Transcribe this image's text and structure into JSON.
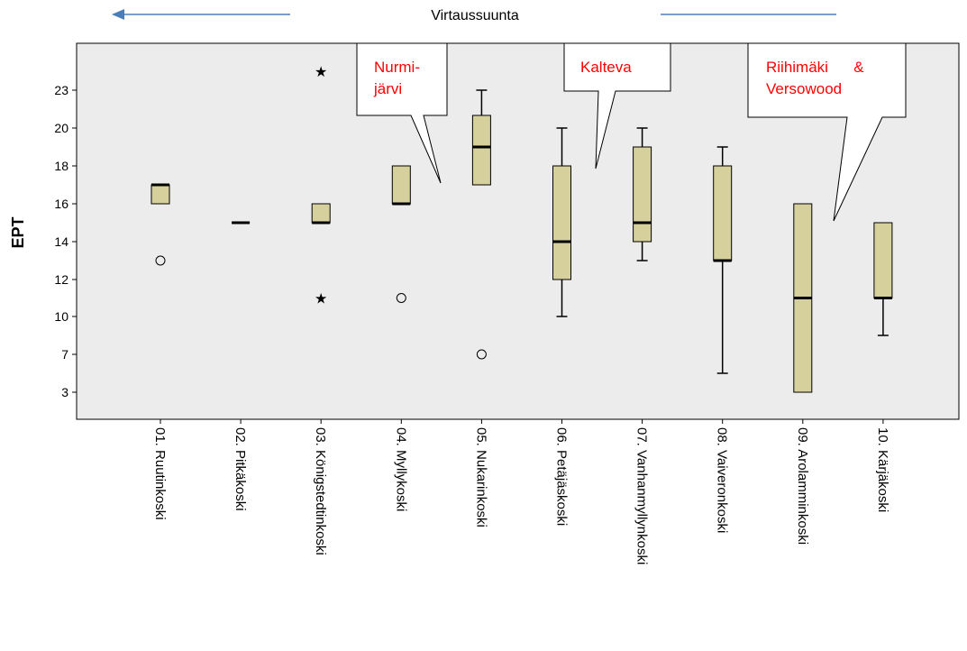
{
  "chart_data": {
    "type": "boxplot",
    "title": "Virtaussuunta",
    "ylabel": "EPT",
    "yticks": [
      3,
      7,
      10,
      12,
      14,
      16,
      18,
      20,
      23
    ],
    "categories": [
      "01. Ruutinkoski",
      "02. Pitkäkoski",
      "03. Königstedtinkoski",
      "04. Myllykoski",
      "05. Nukarinkoski",
      "06. Petäjäskoski",
      "07. Vanhanmyllynkoski",
      "08. Vaiveronkoski",
      "09. Arolamminkoski",
      "10. Kärjäkoski"
    ],
    "boxes": [
      {
        "whislo": 16,
        "q1": 16,
        "med": 17,
        "q3": 17,
        "whishi": 17,
        "outliers": [
          13
        ],
        "extremes": []
      },
      {
        "whislo": 15,
        "q1": 15,
        "med": 15,
        "q3": 15,
        "whishi": 15,
        "outliers": [],
        "extremes": []
      },
      {
        "whislo": 15,
        "q1": 15,
        "med": 15,
        "q3": 16,
        "whishi": 16,
        "outliers": [],
        "extremes": [
          24,
          11
        ]
      },
      {
        "whislo": 16,
        "q1": 16,
        "med": 16,
        "q3": 18,
        "whishi": 18,
        "outliers": [
          11
        ],
        "extremes": []
      },
      {
        "whislo": 17,
        "q1": 17,
        "med": 19,
        "q3": 21,
        "whishi": 23,
        "outliers": [
          7
        ],
        "extremes": []
      },
      {
        "whislo": 10,
        "q1": 12,
        "med": 14,
        "q3": 18,
        "whishi": 20,
        "outliers": [],
        "extremes": []
      },
      {
        "whislo": 13,
        "q1": 14,
        "med": 15,
        "q3": 19,
        "whishi": 20,
        "outliers": [],
        "extremes": []
      },
      {
        "whislo": 5,
        "q1": 13,
        "med": 13,
        "q3": 18,
        "whishi": 19,
        "outliers": [],
        "extremes": []
      },
      {
        "whislo": 3,
        "q1": 3,
        "med": 11,
        "q3": 16,
        "whishi": 16,
        "outliers": [],
        "extremes": []
      },
      {
        "whislo": 8.5,
        "q1": 11,
        "med": 11,
        "q3": 15,
        "whishi": 15,
        "outliers": [],
        "extremes": []
      }
    ],
    "annotations": [
      {
        "lines": [
          "Nurmi-",
          "järvi"
        ]
      },
      {
        "lines": [
          "Kalteva"
        ]
      },
      {
        "lines": [
          "Riihimäki      &",
          "Versowood"
        ]
      }
    ],
    "colors": {
      "plot_background": "#ececec",
      "box_fill": "#d6d09c",
      "arrow": "#4a7ebb",
      "annotation_text": "#ff0000"
    }
  }
}
